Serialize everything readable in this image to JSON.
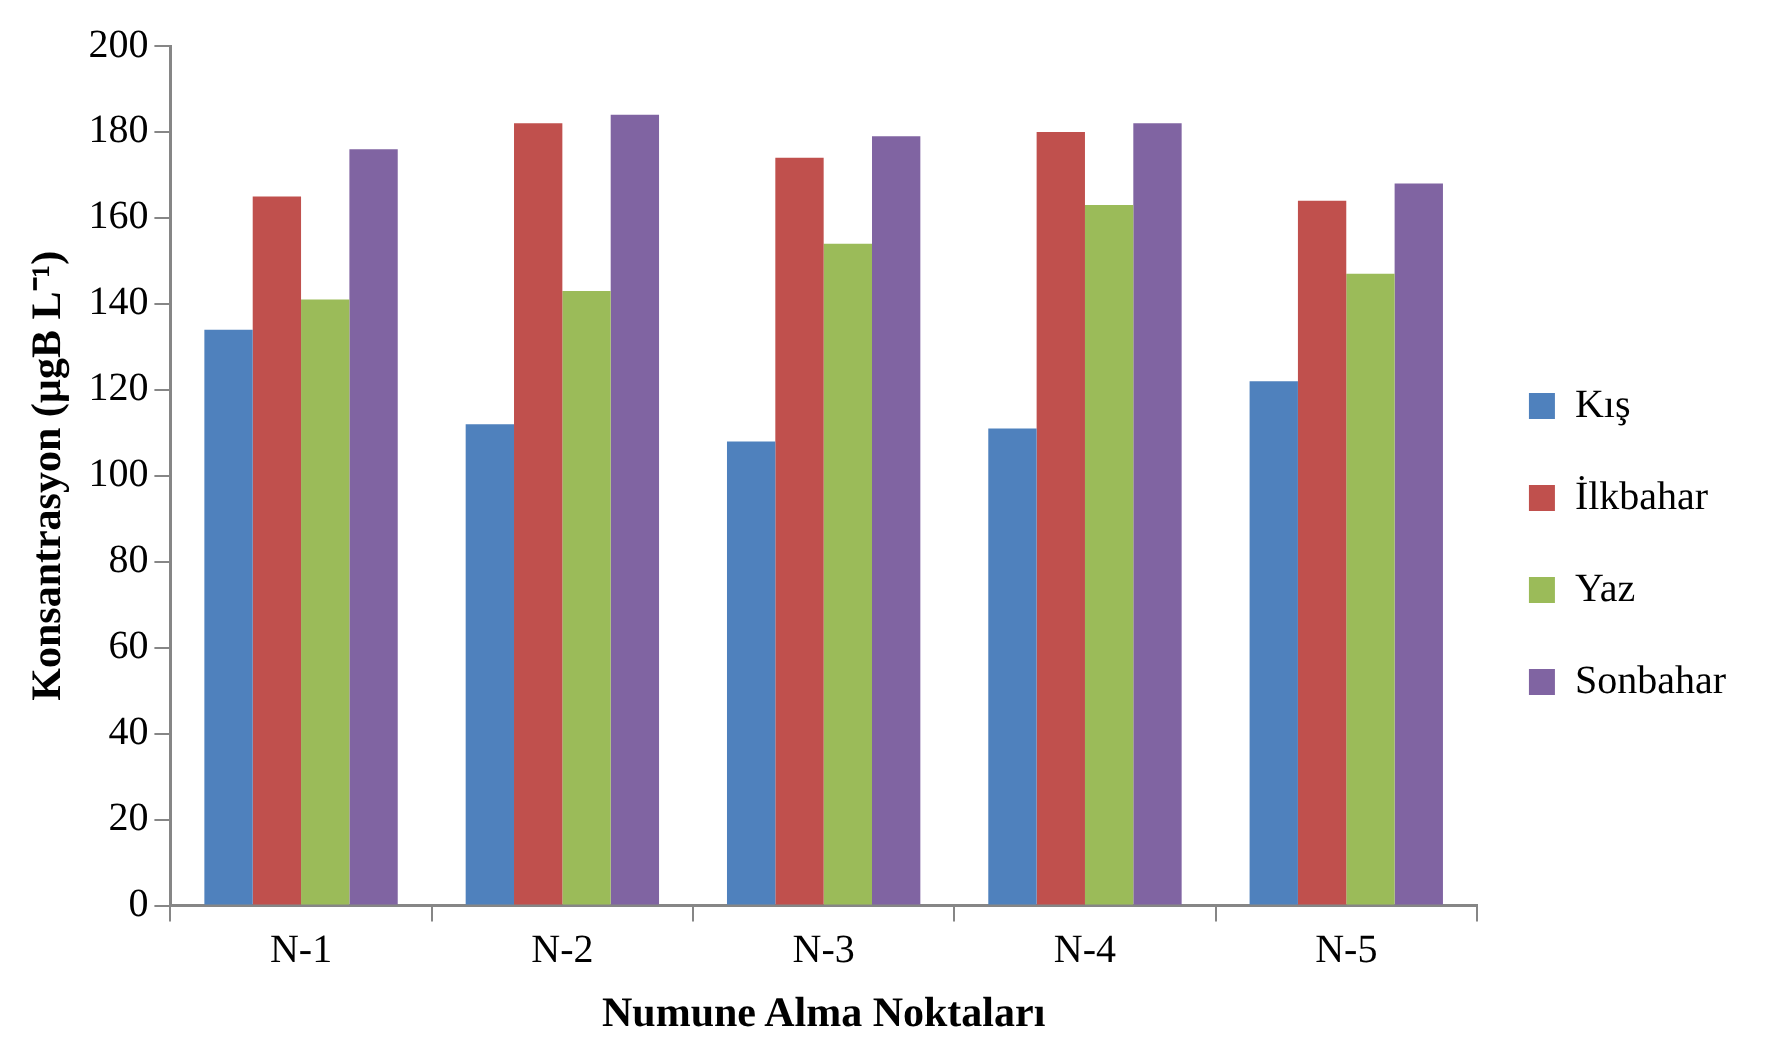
{
  "chart_data": {
    "type": "bar",
    "xlabel": "Numune Alma Noktaları",
    "ylabel": "Konsantrasyon (µgB L⁻¹)",
    "categories": [
      "N-1",
      "N-2",
      "N-3",
      "N-4",
      "N-5"
    ],
    "series": [
      {
        "name": "Kış",
        "color": "#4f81bd",
        "values": [
          134,
          112,
          108,
          111,
          122
        ]
      },
      {
        "name": "İlkbahar",
        "color": "#c0504d",
        "values": [
          165,
          182,
          174,
          180,
          164
        ]
      },
      {
        "name": "Yaz",
        "color": "#9bbb59",
        "values": [
          141,
          143,
          154,
          163,
          147
        ]
      },
      {
        "name": "Sonbahar",
        "color": "#8064a2",
        "values": [
          176,
          184,
          179,
          182,
          168
        ]
      }
    ],
    "ylim": [
      0,
      200
    ],
    "yticks": [
      0,
      20,
      40,
      60,
      80,
      100,
      120,
      140,
      160,
      180,
      200
    ],
    "grid": false,
    "legend": "right"
  }
}
